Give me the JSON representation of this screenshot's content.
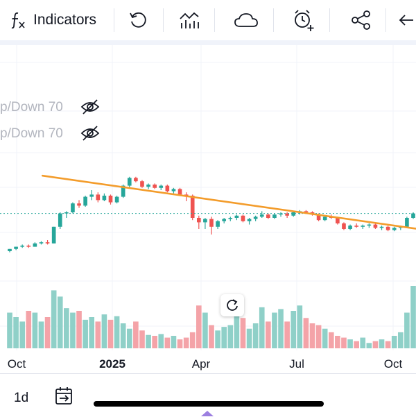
{
  "toolbar": {
    "indicators_label": "Indicators",
    "icons": [
      "fx-icon",
      "undo-icon",
      "bar-chart-icon",
      "cloud-icon",
      "alarm-add-icon",
      "share-icon",
      "back-arrow-icon"
    ]
  },
  "legend": {
    "rows": [
      {
        "text": "p/Down 70",
        "icon": "eye-off-icon"
      },
      {
        "text": "p/Down 70",
        "icon": "eye-off-icon"
      }
    ]
  },
  "chart_data": {
    "type": "candlestick",
    "x_labels": [
      "Oct",
      "2025",
      "Apr",
      "Jul",
      "Oct"
    ],
    "colors": {
      "up": "#26a69a",
      "down": "#ef5350",
      "up_volume": "#8fd0c8",
      "down_volume": "#f4a3a8",
      "trendline": "#f39c2b",
      "price_line": "#26a69a"
    },
    "trendline": {
      "label": ""
    },
    "ohlc": [
      [
        20,
        22,
        19,
        22
      ],
      [
        22,
        24,
        21,
        24
      ],
      [
        24,
        26,
        23,
        25
      ],
      [
        25,
        26,
        23,
        24
      ],
      [
        24,
        28,
        24,
        27
      ],
      [
        27,
        29,
        26,
        28
      ],
      [
        28,
        30,
        26,
        27
      ],
      [
        27,
        42,
        27,
        42
      ],
      [
        42,
        55,
        40,
        54
      ],
      [
        54,
        56,
        50,
        55
      ],
      [
        55,
        64,
        54,
        63
      ],
      [
        63,
        66,
        59,
        61
      ],
      [
        61,
        70,
        60,
        69
      ],
      [
        69,
        75,
        66,
        71
      ],
      [
        71,
        73,
        64,
        66
      ],
      [
        66,
        72,
        65,
        70
      ],
      [
        70,
        71,
        62,
        64
      ],
      [
        64,
        70,
        63,
        69
      ],
      [
        69,
        80,
        68,
        79
      ],
      [
        79,
        87,
        77,
        86
      ],
      [
        86,
        87,
        82,
        83
      ],
      [
        83,
        84,
        77,
        78
      ],
      [
        78,
        81,
        76,
        80
      ],
      [
        80,
        81,
        76,
        77
      ],
      [
        77,
        80,
        75,
        79
      ],
      [
        79,
        80,
        73,
        74
      ],
      [
        74,
        77,
        72,
        76
      ],
      [
        76,
        77,
        70,
        71
      ],
      [
        71,
        73,
        65,
        70
      ],
      [
        70,
        71,
        48,
        50
      ],
      [
        50,
        52,
        40,
        46
      ],
      [
        46,
        50,
        40,
        49
      ],
      [
        49,
        51,
        35,
        42
      ],
      [
        42,
        48,
        40,
        47
      ],
      [
        47,
        50,
        45,
        49
      ],
      [
        49,
        51,
        47,
        50
      ],
      [
        50,
        53,
        48,
        52
      ],
      [
        52,
        53,
        46,
        47
      ],
      [
        47,
        50,
        44,
        49
      ],
      [
        49,
        52,
        47,
        51
      ],
      [
        51,
        56,
        50,
        53
      ],
      [
        53,
        54,
        49,
        50
      ],
      [
        50,
        54,
        49,
        53
      ],
      [
        53,
        55,
        51,
        54
      ],
      [
        54,
        55,
        50,
        52
      ],
      [
        52,
        56,
        51,
        55
      ],
      [
        55,
        57,
        53,
        56
      ],
      [
        56,
        57,
        54,
        55
      ],
      [
        55,
        56,
        52,
        53
      ],
      [
        53,
        54,
        47,
        48
      ],
      [
        48,
        52,
        47,
        51
      ],
      [
        51,
        53,
        49,
        50
      ],
      [
        50,
        51,
        44,
        45
      ],
      [
        45,
        46,
        39,
        40
      ],
      [
        40,
        44,
        39,
        43
      ],
      [
        43,
        45,
        41,
        42
      ],
      [
        42,
        44,
        40,
        43
      ],
      [
        43,
        45,
        41,
        44
      ],
      [
        44,
        45,
        40,
        41
      ],
      [
        41,
        43,
        39,
        42
      ],
      [
        42,
        43,
        38,
        39
      ],
      [
        39,
        42,
        38,
        41
      ],
      [
        41,
        43,
        39,
        42
      ],
      [
        42,
        51,
        41,
        50
      ],
      [
        50,
        55,
        49,
        54
      ]
    ],
    "volume": [
      40,
      35,
      30,
      42,
      40,
      30,
      35,
      65,
      58,
      45,
      40,
      42,
      32,
      35,
      30,
      38,
      32,
      36,
      28,
      22,
      30,
      20,
      15,
      14,
      16,
      12,
      14,
      10,
      12,
      18,
      48,
      40,
      26,
      20,
      24,
      26,
      40,
      34,
      22,
      28,
      46,
      30,
      40,
      44,
      30,
      42,
      48,
      34,
      28,
      26,
      22,
      18,
      14,
      12,
      10,
      8,
      12,
      6,
      8,
      10,
      8,
      14,
      18,
      40,
      70
    ]
  },
  "reset_button": {
    "icon": "reset-icon"
  },
  "bottom": {
    "interval": "1d",
    "date_range_icon": "calendar-arrow-icon"
  }
}
